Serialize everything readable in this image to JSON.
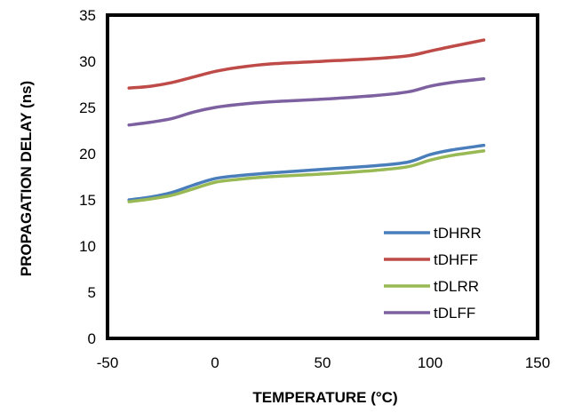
{
  "chart_data": {
    "type": "line",
    "title": "",
    "xlabel": "TEMPERATURE (°C)",
    "ylabel": "PROPAGATION DELAY (ns)",
    "xlim": [
      -50,
      150
    ],
    "ylim": [
      0,
      35
    ],
    "xticks": [
      -50,
      0,
      50,
      100,
      150
    ],
    "yticks": [
      0,
      5,
      10,
      15,
      20,
      25,
      30,
      35
    ],
    "grid": false,
    "legend_position": "lower-right",
    "series": [
      {
        "name": "tDHRR",
        "color": "#4a7ebb",
        "points": [
          [
            -40,
            15.0
          ],
          [
            -30,
            15.3
          ],
          [
            -20,
            15.8
          ],
          [
            -10,
            16.6
          ],
          [
            0,
            17.3
          ],
          [
            10,
            17.6
          ],
          [
            25,
            17.9
          ],
          [
            50,
            18.3
          ],
          [
            75,
            18.7
          ],
          [
            90,
            19.1
          ],
          [
            100,
            19.9
          ],
          [
            110,
            20.4
          ],
          [
            125,
            20.9
          ]
        ]
      },
      {
        "name": "tDHFF",
        "color": "#be4b48",
        "points": [
          [
            -40,
            27.1
          ],
          [
            -30,
            27.3
          ],
          [
            -20,
            27.7
          ],
          [
            -10,
            28.3
          ],
          [
            0,
            28.9
          ],
          [
            10,
            29.3
          ],
          [
            25,
            29.7
          ],
          [
            50,
            30.0
          ],
          [
            75,
            30.3
          ],
          [
            90,
            30.6
          ],
          [
            100,
            31.1
          ],
          [
            110,
            31.6
          ],
          [
            125,
            32.3
          ]
        ]
      },
      {
        "name": "tDLRR",
        "color": "#98b954",
        "points": [
          [
            -40,
            14.8
          ],
          [
            -30,
            15.1
          ],
          [
            -20,
            15.5
          ],
          [
            -10,
            16.2
          ],
          [
            0,
            16.9
          ],
          [
            10,
            17.2
          ],
          [
            25,
            17.5
          ],
          [
            50,
            17.8
          ],
          [
            75,
            18.2
          ],
          [
            90,
            18.6
          ],
          [
            100,
            19.3
          ],
          [
            110,
            19.8
          ],
          [
            125,
            20.3
          ]
        ]
      },
      {
        "name": "tDLFF",
        "color": "#7d60a0",
        "points": [
          [
            -40,
            23.1
          ],
          [
            -30,
            23.4
          ],
          [
            -20,
            23.8
          ],
          [
            -10,
            24.5
          ],
          [
            0,
            25.0
          ],
          [
            10,
            25.3
          ],
          [
            25,
            25.6
          ],
          [
            50,
            25.9
          ],
          [
            75,
            26.3
          ],
          [
            90,
            26.7
          ],
          [
            100,
            27.3
          ],
          [
            110,
            27.7
          ],
          [
            125,
            28.1
          ]
        ]
      }
    ]
  }
}
